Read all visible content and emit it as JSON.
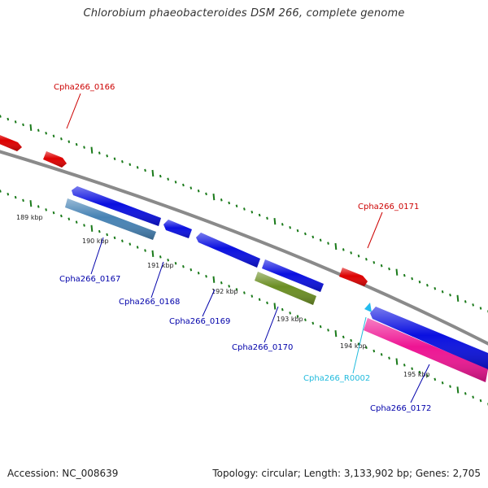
{
  "title": "Chlorobium phaeobacteroides DSM 266, complete genome",
  "footer": {
    "accession": "Accession: NC_008639",
    "topology": "Topology: circular; Length: 3,133,902 bp; Genes: 2,705"
  },
  "colors": {
    "backbone": "#8a8a8a",
    "tick": "#1a7a1a",
    "red_gene": "#dd0000",
    "blue_gene": "#0a10e0",
    "steel_gene": "#4682b4",
    "olive_gene": "#6b8e23",
    "pink_gene": "#ee1493",
    "cyan_gene": "#22bbee",
    "label_red": "#cc0000",
    "label_blue": "#0000aa",
    "label_cyan": "#22bbdd"
  },
  "kbp_labels": [
    "189 kbp",
    "190 kbp",
    "191 kbp",
    "192 kbp",
    "193 kbp",
    "194 kbp",
    "195 kbp"
  ],
  "genes": [
    {
      "id": "Cpha266_0166",
      "color": "red_gene",
      "label_color": "label_red"
    },
    {
      "id": "Cpha266_0167",
      "color": "steel_gene",
      "label_color": "label_blue"
    },
    {
      "id": "Cpha266_0168",
      "color": "blue_gene",
      "label_color": "label_blue"
    },
    {
      "id": "Cpha266_0169",
      "color": "blue_gene",
      "label_color": "label_blue"
    },
    {
      "id": "Cpha266_0170",
      "color": "olive_gene",
      "label_color": "label_blue"
    },
    {
      "id": "Cpha266_0171",
      "color": "red_gene",
      "label_color": "label_red"
    },
    {
      "id": "Cpha266_R0002",
      "color": "cyan_gene",
      "label_color": "label_cyan"
    },
    {
      "id": "Cpha266_0172",
      "color": "pink_gene",
      "label_color": "label_blue"
    }
  ]
}
